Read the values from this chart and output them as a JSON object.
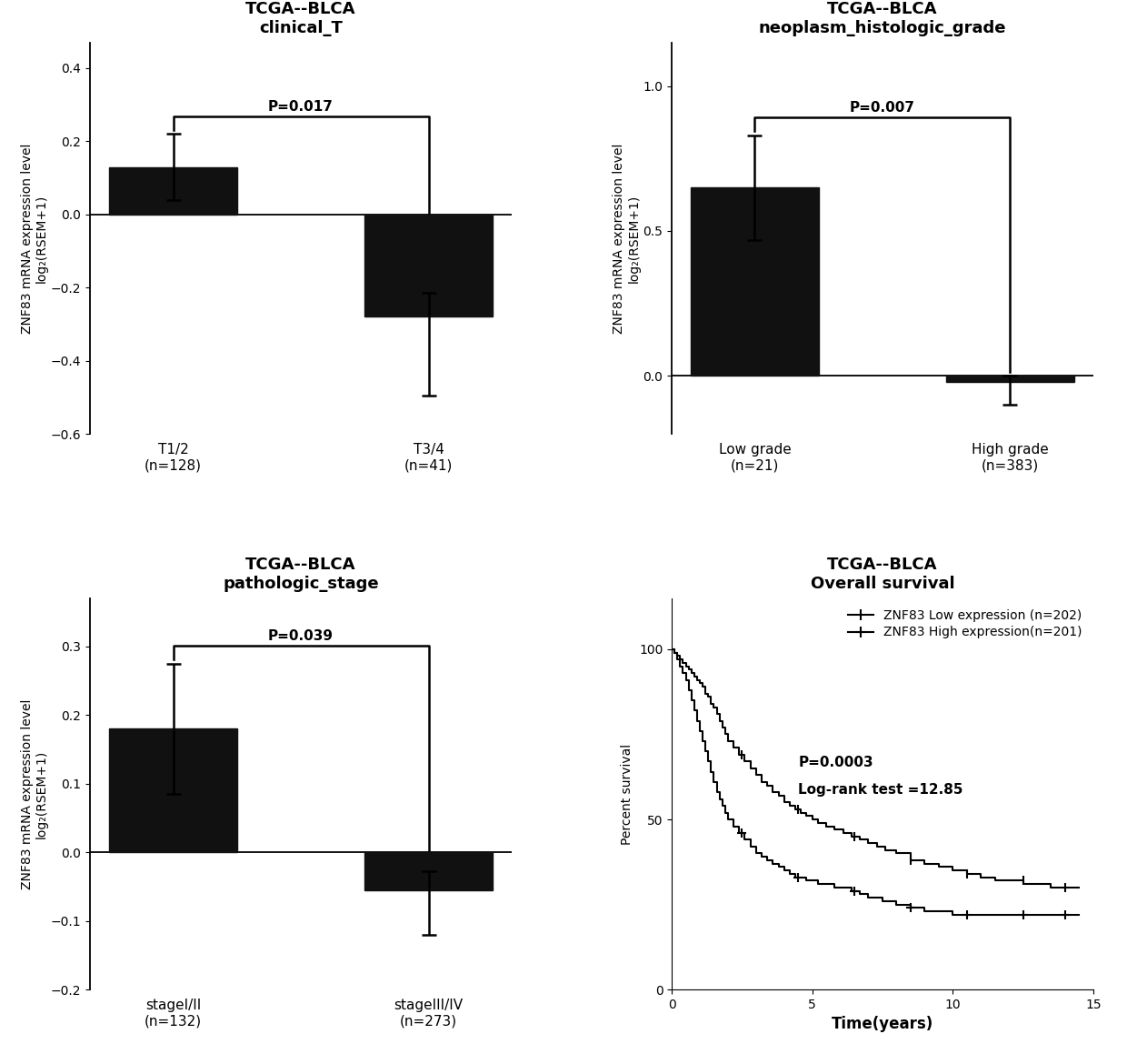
{
  "panel1": {
    "title": "TCGA--BLCA\nclinical_T",
    "categories": [
      "T1/2\n(n=128)",
      "T3/4\n(n=41)"
    ],
    "values": [
      0.13,
      -0.28
    ],
    "errors_up": [
      0.09,
      0.065
    ],
    "errors_down": [
      0.09,
      0.215
    ],
    "ylim": [
      -0.6,
      0.47
    ],
    "yticks": [
      -0.6,
      -0.4,
      -0.2,
      0.0,
      0.2,
      0.4
    ],
    "pvalue": "P=0.017",
    "ylabel": "ZNF83 mRNA expression level\nlog₂(RSEM+1)"
  },
  "panel2": {
    "title": "TCGA--BLCA\nneoplasm_histologic_grade",
    "categories": [
      "Low grade\n(n=21)",
      "High grade\n(n=383)"
    ],
    "values": [
      0.65,
      -0.02
    ],
    "errors_up": [
      0.18,
      0.02
    ],
    "errors_down": [
      0.18,
      0.08
    ],
    "ylim": [
      -0.2,
      1.15
    ],
    "yticks": [
      0.0,
      0.5,
      1.0
    ],
    "pvalue": "P=0.007",
    "ylabel": "ZNF83 mRNA expression level\nlog₂(RSEM+1)"
  },
  "panel3": {
    "title": "TCGA--BLCA\npathologic_stage",
    "categories": [
      "stageI/II\n(n=132)",
      "stageIII/IV\n(n=273)"
    ],
    "values": [
      0.18,
      -0.055
    ],
    "errors_up": [
      0.095,
      0.028
    ],
    "errors_down": [
      0.095,
      0.065
    ],
    "ylim": [
      -0.2,
      0.37
    ],
    "yticks": [
      -0.2,
      -0.1,
      0.0,
      0.1,
      0.2,
      0.3
    ],
    "pvalue": "P=0.039",
    "ylabel": "ZNF83 mRNA expression level\nlog₂(RSEM+1)"
  },
  "panel4": {
    "title": "TCGA--BLCA\nOverall survival",
    "xlabel": "Time(years)",
    "ylabel": "Percent survival",
    "xlim": [
      0,
      15
    ],
    "ylim": [
      0,
      115
    ],
    "yticks": [
      0,
      50,
      100
    ],
    "xticks": [
      0,
      5,
      10,
      15
    ],
    "pvalue_text": "P=0.0003",
    "logrank_text": "Log-rank test =12.85",
    "legend_low": "ZNF83 Low expression (n=202)",
    "legend_high": "ZNF83 High expression(n=201)",
    "low_t": [
      0,
      0.1,
      0.2,
      0.3,
      0.4,
      0.5,
      0.6,
      0.7,
      0.8,
      0.9,
      1.0,
      1.1,
      1.2,
      1.3,
      1.4,
      1.5,
      1.6,
      1.7,
      1.8,
      1.9,
      2.0,
      2.2,
      2.4,
      2.6,
      2.8,
      3.0,
      3.2,
      3.4,
      3.6,
      3.8,
      4.0,
      4.2,
      4.4,
      4.6,
      4.8,
      5.0,
      5.2,
      5.5,
      5.8,
      6.1,
      6.4,
      6.7,
      7.0,
      7.3,
      7.6,
      8.0,
      8.5,
      9.0,
      9.5,
      10.0,
      10.5,
      11.0,
      11.5,
      12.0,
      12.5,
      13.0,
      13.5,
      14.0,
      14.5
    ],
    "low_s": [
      100,
      99,
      98,
      97,
      96,
      95,
      94,
      93,
      92,
      91,
      90,
      89,
      87,
      86,
      84,
      83,
      81,
      79,
      77,
      75,
      73,
      71,
      69,
      67,
      65,
      63,
      61,
      60,
      58,
      57,
      55,
      54,
      53,
      52,
      51,
      50,
      49,
      48,
      47,
      46,
      45,
      44,
      43,
      42,
      41,
      40,
      38,
      37,
      36,
      35,
      34,
      33,
      32,
      32,
      31,
      31,
      30,
      30,
      30
    ],
    "high_t": [
      0,
      0.1,
      0.2,
      0.3,
      0.4,
      0.5,
      0.6,
      0.7,
      0.8,
      0.9,
      1.0,
      1.1,
      1.2,
      1.3,
      1.4,
      1.5,
      1.6,
      1.7,
      1.8,
      1.9,
      2.0,
      2.2,
      2.4,
      2.6,
      2.8,
      3.0,
      3.2,
      3.4,
      3.6,
      3.8,
      4.0,
      4.2,
      4.4,
      4.6,
      4.8,
      5.0,
      5.2,
      5.5,
      5.8,
      6.1,
      6.4,
      6.7,
      7.0,
      7.5,
      8.0,
      8.5,
      9.0,
      9.5,
      10.0,
      10.5,
      11.0,
      11.5,
      12.0,
      12.5,
      13.0,
      13.5,
      14.0,
      14.5
    ],
    "high_s": [
      100,
      99,
      97,
      95,
      93,
      91,
      88,
      85,
      82,
      79,
      76,
      73,
      70,
      67,
      64,
      61,
      58,
      56,
      54,
      52,
      50,
      48,
      46,
      44,
      42,
      40,
      39,
      38,
      37,
      36,
      35,
      34,
      33,
      33,
      32,
      32,
      31,
      31,
      30,
      30,
      29,
      28,
      27,
      26,
      25,
      24,
      23,
      23,
      22,
      22,
      22,
      22,
      22,
      22,
      22,
      22,
      22,
      22
    ]
  },
  "bar_color": "#111111",
  "bar_width": 0.5
}
